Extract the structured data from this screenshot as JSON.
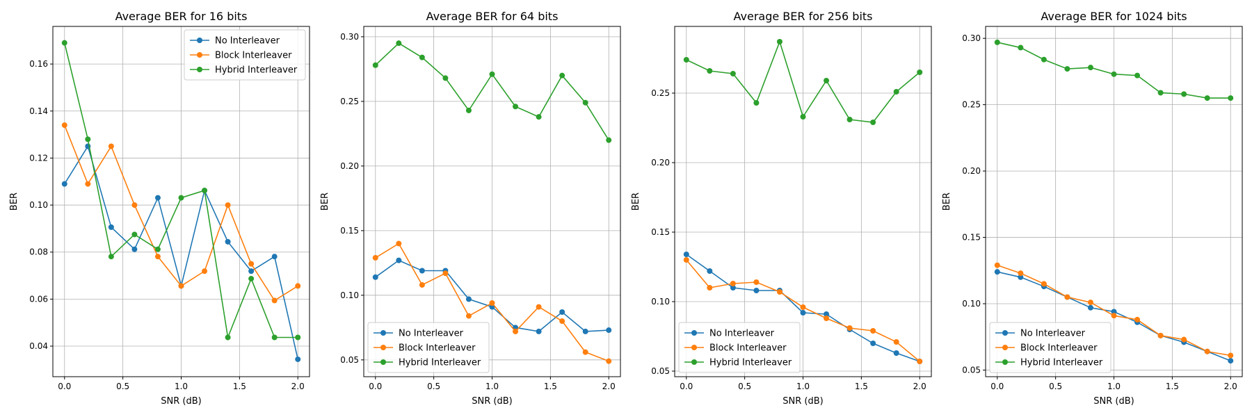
{
  "chart_data": [
    {
      "type": "line",
      "title": "Average BER for 16 bits",
      "xlabel": "SNR (dB)",
      "ylabel": "BER",
      "xlim": [
        -0.1,
        2.1
      ],
      "ylim": [
        0.027,
        0.176
      ],
      "xticks": [
        0.0,
        0.5,
        1.0,
        1.5,
        2.0
      ],
      "xtick_labels": [
        "0.0",
        "0.5",
        "1.0",
        "1.5",
        "2.0"
      ],
      "yticks": [
        0.04,
        0.06,
        0.08,
        0.1,
        0.12,
        0.14,
        0.16
      ],
      "ytick_labels": [
        "0.04",
        "0.06",
        "0.08",
        "0.10",
        "0.12",
        "0.14",
        "0.16"
      ],
      "grid": true,
      "legend_position": "top-right",
      "x": [
        0.0,
        0.2,
        0.4,
        0.6,
        0.8,
        1.0,
        1.2,
        1.4,
        1.6,
        1.8,
        2.0
      ],
      "series": [
        {
          "name": "No Interleaver",
          "color": "#1f77b4",
          "values": [
            0.109,
            0.125,
            0.0906,
            0.0812,
            0.1031,
            0.0656,
            0.1062,
            0.0844,
            0.0719,
            0.0781,
            0.0344
          ]
        },
        {
          "name": "Block Interleaver",
          "color": "#ff7f0e",
          "values": [
            0.134,
            0.109,
            0.125,
            0.1,
            0.0781,
            0.0656,
            0.0719,
            0.1,
            0.075,
            0.0594,
            0.0656
          ]
        },
        {
          "name": "Hybrid Interleaver",
          "color": "#2ca02c",
          "values": [
            0.169,
            0.128,
            0.0781,
            0.0875,
            0.0812,
            0.1031,
            0.1062,
            0.0437,
            0.0687,
            0.0437,
            0.0437
          ]
        }
      ]
    },
    {
      "type": "line",
      "title": "Average BER for 64 bits",
      "xlabel": "SNR (dB)",
      "ylabel": "BER",
      "xlim": [
        -0.1,
        2.1
      ],
      "ylim": [
        0.037,
        0.308
      ],
      "xticks": [
        0.0,
        0.5,
        1.0,
        1.5,
        2.0
      ],
      "xtick_labels": [
        "0.0",
        "0.5",
        "1.0",
        "1.5",
        "2.0"
      ],
      "yticks": [
        0.05,
        0.1,
        0.15,
        0.2,
        0.25,
        0.3
      ],
      "ytick_labels": [
        "0.05",
        "0.10",
        "0.15",
        "0.20",
        "0.25",
        "0.30"
      ],
      "grid": true,
      "legend_position": "bottom-left",
      "x": [
        0.0,
        0.2,
        0.4,
        0.6,
        0.8,
        1.0,
        1.2,
        1.4,
        1.6,
        1.8,
        2.0
      ],
      "series": [
        {
          "name": "No Interleaver",
          "color": "#1f77b4",
          "values": [
            0.114,
            0.127,
            0.119,
            0.119,
            0.097,
            0.091,
            0.075,
            0.072,
            0.087,
            0.072,
            0.073
          ]
        },
        {
          "name": "Block Interleaver",
          "color": "#ff7f0e",
          "values": [
            0.129,
            0.14,
            0.108,
            0.117,
            0.084,
            0.094,
            0.072,
            0.091,
            0.08,
            0.056,
            0.049
          ]
        },
        {
          "name": "Hybrid Interleaver",
          "color": "#2ca02c",
          "values": [
            0.278,
            0.295,
            0.284,
            0.268,
            0.243,
            0.271,
            0.246,
            0.238,
            0.27,
            0.249,
            0.22
          ]
        }
      ]
    },
    {
      "type": "line",
      "title": "Average BER for 256 bits",
      "xlabel": "SNR (dB)",
      "ylabel": "BER",
      "xlim": [
        -0.1,
        2.1
      ],
      "ylim": [
        0.046,
        0.298
      ],
      "xticks": [
        0.0,
        0.5,
        1.0,
        1.5,
        2.0
      ],
      "xtick_labels": [
        "0.0",
        "0.5",
        "1.0",
        "1.5",
        "2.0"
      ],
      "yticks": [
        0.05,
        0.1,
        0.15,
        0.2,
        0.25
      ],
      "ytick_labels": [
        "0.05",
        "0.10",
        "0.15",
        "0.20",
        "0.25"
      ],
      "grid": true,
      "legend_position": "bottom-left",
      "x": [
        0.0,
        0.2,
        0.4,
        0.6,
        0.8,
        1.0,
        1.2,
        1.4,
        1.6,
        1.8,
        2.0
      ],
      "series": [
        {
          "name": "No Interleaver",
          "color": "#1f77b4",
          "values": [
            0.134,
            0.122,
            0.11,
            0.108,
            0.108,
            0.092,
            0.091,
            0.08,
            0.07,
            0.063,
            0.057
          ]
        },
        {
          "name": "Block Interleaver",
          "color": "#ff7f0e",
          "values": [
            0.13,
            0.11,
            0.113,
            0.114,
            0.107,
            0.096,
            0.088,
            0.081,
            0.079,
            0.071,
            0.057
          ]
        },
        {
          "name": "Hybrid Interleaver",
          "color": "#2ca02c",
          "values": [
            0.274,
            0.266,
            0.264,
            0.243,
            0.287,
            0.233,
            0.259,
            0.231,
            0.229,
            0.251,
            0.265
          ]
        }
      ]
    },
    {
      "type": "line",
      "title": "Average BER for 1024 bits",
      "xlabel": "SNR (dB)",
      "ylabel": "BER",
      "xlim": [
        -0.1,
        2.1
      ],
      "ylim": [
        0.045,
        0.309
      ],
      "xticks": [
        0.0,
        0.5,
        1.0,
        1.5,
        2.0
      ],
      "xtick_labels": [
        "0.0",
        "0.5",
        "1.0",
        "1.5",
        "2.0"
      ],
      "yticks": [
        0.05,
        0.1,
        0.15,
        0.2,
        0.25,
        0.3
      ],
      "ytick_labels": [
        "0.05",
        "0.10",
        "0.15",
        "0.20",
        "0.25",
        "0.30"
      ],
      "grid": true,
      "legend_position": "bottom-left",
      "x": [
        0.0,
        0.2,
        0.4,
        0.6,
        0.8,
        1.0,
        1.2,
        1.4,
        1.6,
        1.8,
        2.0
      ],
      "series": [
        {
          "name": "No Interleaver",
          "color": "#1f77b4",
          "values": [
            0.124,
            0.12,
            0.113,
            0.105,
            0.097,
            0.094,
            0.086,
            0.076,
            0.071,
            0.064,
            0.057
          ]
        },
        {
          "name": "Block Interleaver",
          "color": "#ff7f0e",
          "values": [
            0.129,
            0.123,
            0.115,
            0.105,
            0.101,
            0.091,
            0.088,
            0.076,
            0.073,
            0.064,
            0.061
          ]
        },
        {
          "name": "Hybrid Interleaver",
          "color": "#2ca02c",
          "values": [
            0.297,
            0.293,
            0.284,
            0.277,
            0.278,
            0.273,
            0.272,
            0.259,
            0.258,
            0.255,
            0.255
          ]
        }
      ]
    }
  ]
}
